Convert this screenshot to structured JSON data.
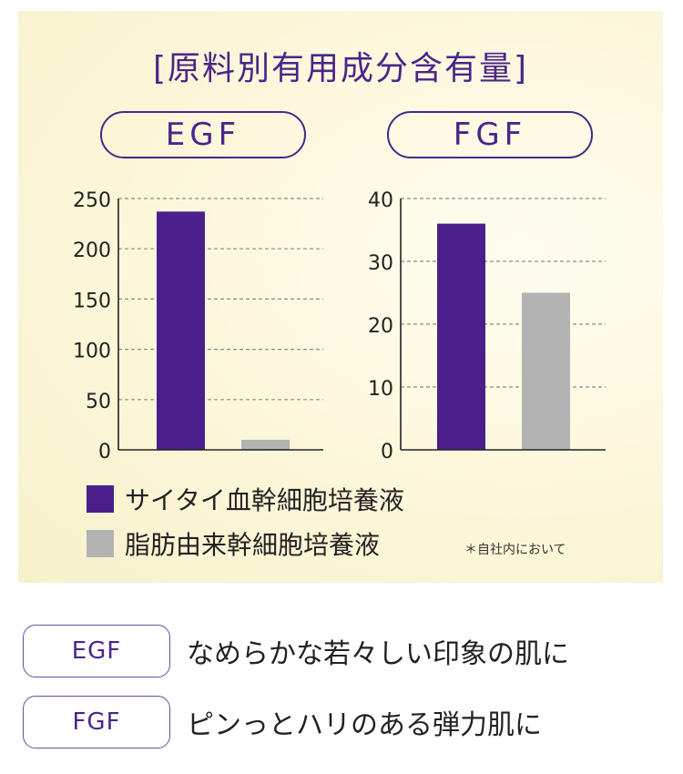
{
  "section_title": "[原料別有用成分含有量]",
  "chart_data": [
    {
      "type": "bar",
      "title": "EGF",
      "categories": [
        "サイタイ血幹細胞培養液",
        "脂肪由来幹細胞培養液"
      ],
      "values": [
        237,
        10
      ],
      "ylim": [
        0,
        250
      ],
      "yticks": [
        0,
        50,
        100,
        150,
        200,
        250
      ],
      "ytick_labels": [
        "0",
        "50",
        "100",
        "150",
        "200",
        "250"
      ],
      "grid": "dashed horizontal",
      "colors": [
        "#4b1f8b",
        "#b3b3b3"
      ]
    },
    {
      "type": "bar",
      "title": "FGF",
      "categories": [
        "サイタイ血幹細胞培養液",
        "脂肪由来幹細胞培養液"
      ],
      "values": [
        36,
        25
      ],
      "ylim": [
        0,
        40
      ],
      "yticks": [
        0,
        10,
        20,
        30,
        40
      ],
      "ytick_labels": [
        "0",
        "10",
        "20",
        "30",
        "40"
      ],
      "grid": "dashed horizontal",
      "colors": [
        "#4b1f8b",
        "#b3b3b3"
      ]
    }
  ],
  "legend": [
    {
      "label": "サイタイ血幹細胞培養液",
      "color": "#4b1f8b"
    },
    {
      "label": "脂肪由来幹細胞培養液",
      "color": "#b3b3b3"
    }
  ],
  "note": "＊自社内において",
  "features": [
    {
      "badge": "EGF",
      "text": "なめらかな若々しい印象の肌に"
    },
    {
      "badge": "FGF",
      "text": "ピンっとハリのある弾力肌に"
    }
  ]
}
